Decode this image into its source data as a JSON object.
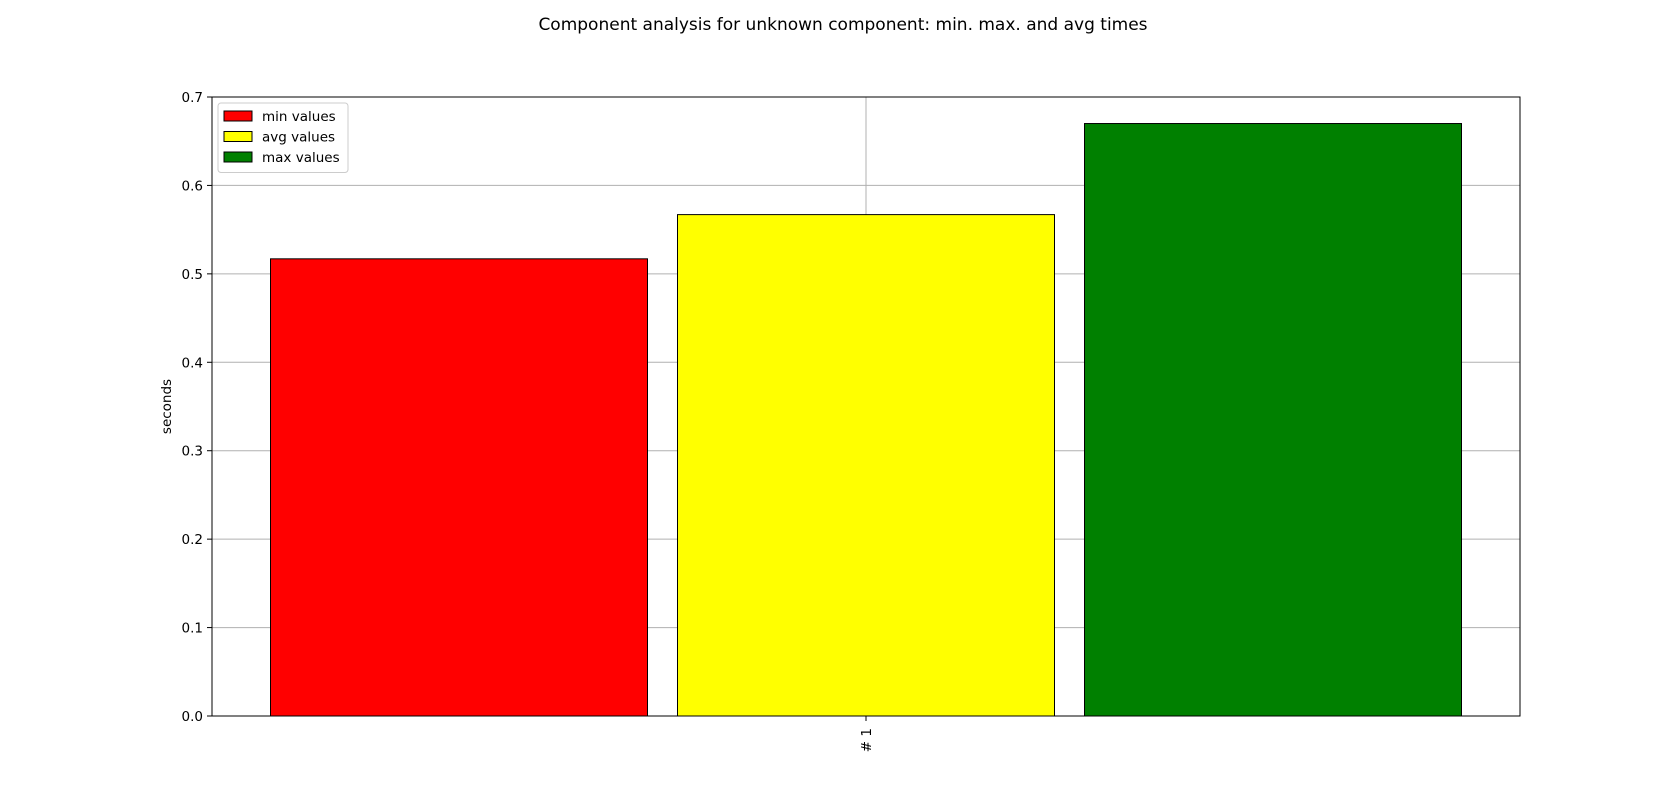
{
  "chart_data": {
    "type": "bar",
    "title": "Component analysis for unknown component: min. max. and avg times",
    "xlabel": "",
    "ylabel": "seconds",
    "categories": [
      "# 1"
    ],
    "series": [
      {
        "name": "min values",
        "values": [
          0.517
        ],
        "color": "#ff0000"
      },
      {
        "name": "avg values",
        "values": [
          0.567
        ],
        "color": "#ffff00"
      },
      {
        "name": "max values",
        "values": [
          0.67
        ],
        "color": "#008000"
      }
    ],
    "ylim": [
      0,
      0.7
    ],
    "yticks": [
      "0.0",
      "0.1",
      "0.2",
      "0.3",
      "0.4",
      "0.5",
      "0.6",
      "0.7"
    ],
    "grid": true,
    "legend_position": "upper-left"
  }
}
